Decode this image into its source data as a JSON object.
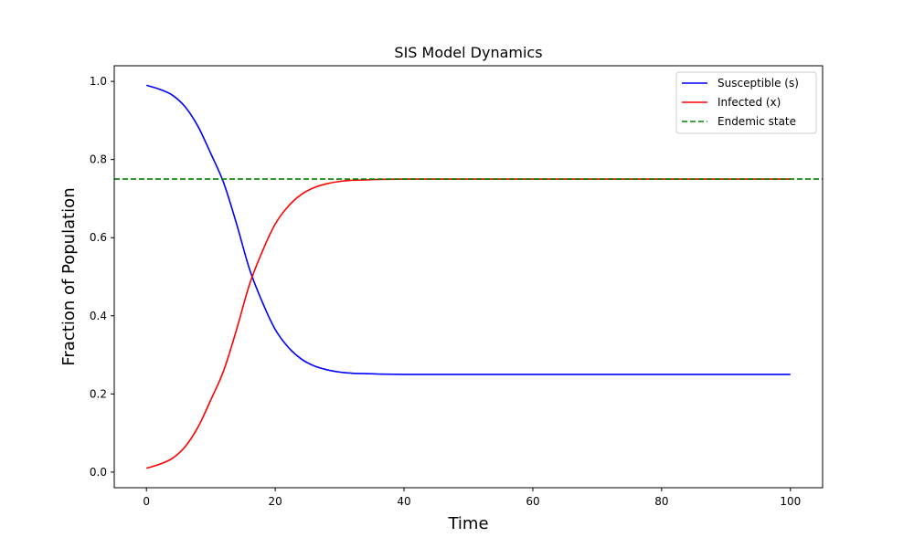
{
  "chart_data": {
    "type": "line",
    "title": "SIS Model Dynamics",
    "xlabel": "Time",
    "ylabel": "Fraction of Population",
    "xlim": [
      -5,
      105
    ],
    "ylim": [
      -0.04,
      1.04
    ],
    "xticks": [
      0,
      20,
      40,
      60,
      80,
      100
    ],
    "yticks": [
      0.0,
      0.2,
      0.4,
      0.6,
      0.8,
      1.0
    ],
    "grid": false,
    "legend_position": "top-right",
    "series": [
      {
        "name": "Susceptible (s)",
        "color": "#0000ff",
        "style": "solid",
        "x": [
          0,
          2,
          4,
          6,
          8,
          10,
          12,
          14,
          16,
          18,
          20,
          22,
          24,
          26,
          28,
          30,
          32,
          34,
          36,
          40,
          45,
          50,
          60,
          70,
          80,
          90,
          100
        ],
        "y": [
          0.99,
          0.98,
          0.965,
          0.935,
          0.885,
          0.815,
          0.74,
          0.635,
          0.52,
          0.435,
          0.365,
          0.32,
          0.29,
          0.272,
          0.262,
          0.256,
          0.253,
          0.252,
          0.251,
          0.25,
          0.25,
          0.25,
          0.25,
          0.25,
          0.25,
          0.25,
          0.25
        ]
      },
      {
        "name": "Infected (x)",
        "color": "#ff0000",
        "style": "solid",
        "x": [
          0,
          2,
          4,
          6,
          8,
          10,
          12,
          14,
          16,
          18,
          20,
          22,
          24,
          26,
          28,
          30,
          32,
          34,
          36,
          40,
          45,
          50,
          60,
          70,
          80,
          90,
          100
        ],
        "y": [
          0.01,
          0.02,
          0.035,
          0.065,
          0.115,
          0.185,
          0.26,
          0.365,
          0.48,
          0.565,
          0.635,
          0.68,
          0.71,
          0.728,
          0.738,
          0.744,
          0.747,
          0.748,
          0.749,
          0.75,
          0.75,
          0.75,
          0.75,
          0.75,
          0.75,
          0.75,
          0.75
        ]
      },
      {
        "name": "Endemic state",
        "color": "#008000",
        "style": "dashed",
        "x": [
          -5,
          105
        ],
        "y": [
          0.75,
          0.75
        ]
      }
    ]
  }
}
